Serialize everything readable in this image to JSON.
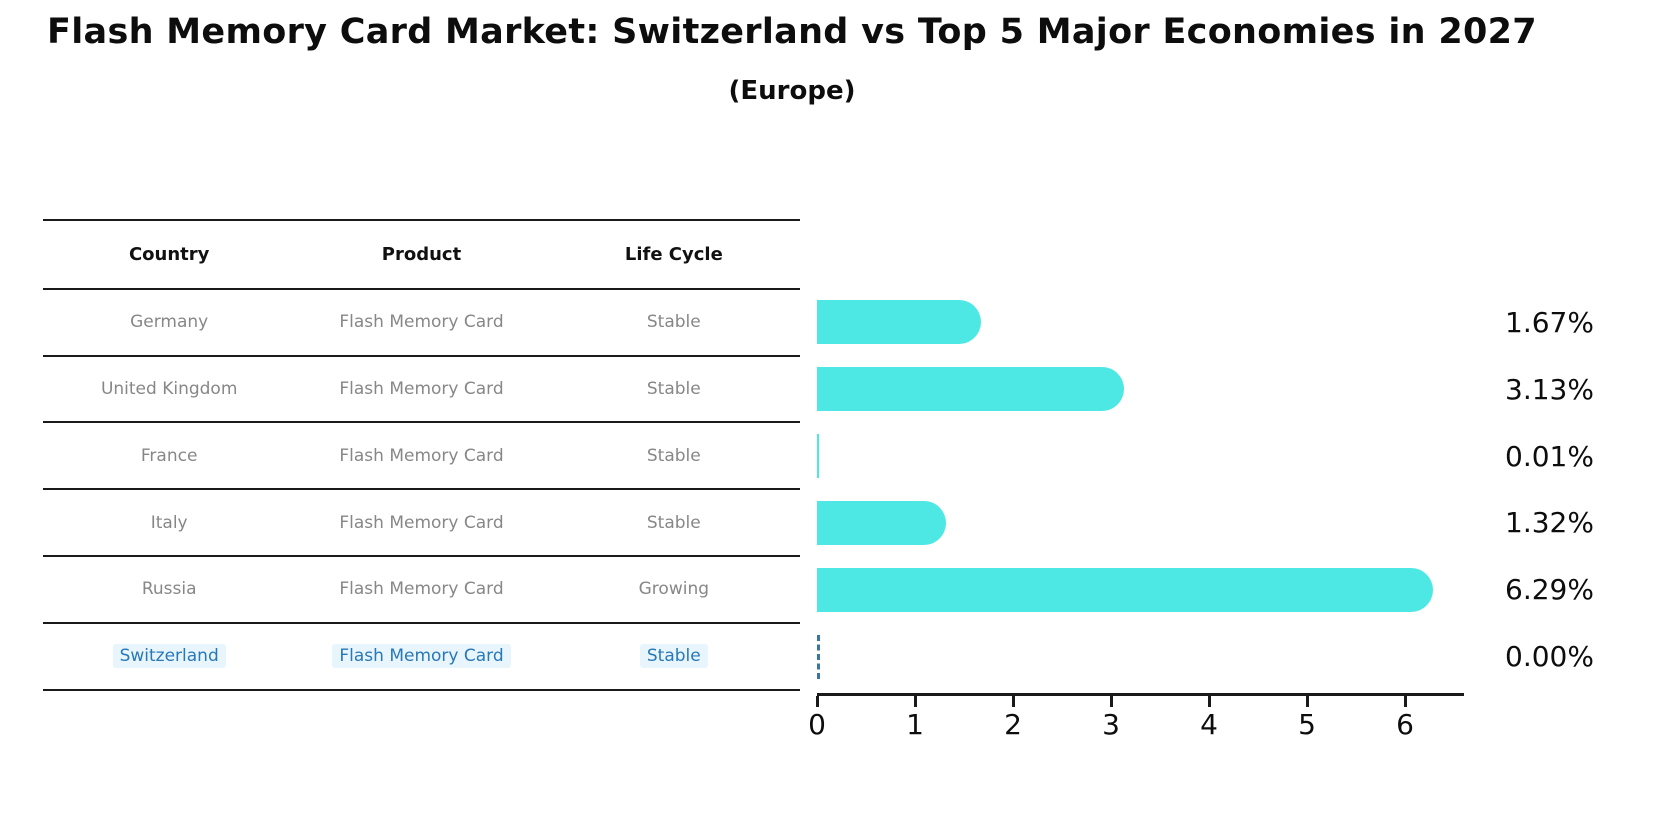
{
  "chart_data": {
    "type": "bar",
    "orientation": "horizontal",
    "title": "Flash Memory Card Market: Switzerland vs Top 5 Major Economies in 2027",
    "subtitle": "(Europe)",
    "categories": [
      "Germany",
      "United Kingdom",
      "France",
      "Italy",
      "Russia",
      "Switzerland"
    ],
    "values": [
      1.67,
      3.13,
      0.01,
      1.32,
      6.29,
      0.0
    ],
    "value_labels": [
      "1.67%",
      "3.13%",
      "0.01%",
      "1.32%",
      "6.29%",
      "0.00%"
    ],
    "xlabel": "",
    "ylabel": "",
    "xlim": [
      0,
      6.6
    ],
    "xticks": [
      0,
      1,
      2,
      3,
      4,
      5,
      6
    ],
    "grid": false,
    "legend": null,
    "bar_color": "#4de8e3",
    "zero_marker_color": "#3a76a0",
    "zero_marker_style": "dashed"
  },
  "table": {
    "headers": [
      "Country",
      "Product",
      "Life Cycle"
    ],
    "rows": [
      {
        "country": "Germany",
        "product": "Flash Memory Card",
        "life_cycle": "Stable",
        "highlight": false
      },
      {
        "country": "United Kingdom",
        "product": "Flash Memory Card",
        "life_cycle": "Stable",
        "highlight": false
      },
      {
        "country": "France",
        "product": "Flash Memory Card",
        "life_cycle": "Stable",
        "highlight": false
      },
      {
        "country": "Italy",
        "product": "Flash Memory Card",
        "life_cycle": "Stable",
        "highlight": false
      },
      {
        "country": "Russia",
        "product": "Flash Memory Card",
        "life_cycle": "Growing",
        "highlight": false
      },
      {
        "country": "Switzerland",
        "product": "Flash Memory Card",
        "life_cycle": "Stable",
        "highlight": true
      }
    ]
  },
  "colors": {
    "bar": "#4de8e3",
    "highlight_text": "#2878b8",
    "table_text": "#878787",
    "axis": "#1a1a1a"
  }
}
